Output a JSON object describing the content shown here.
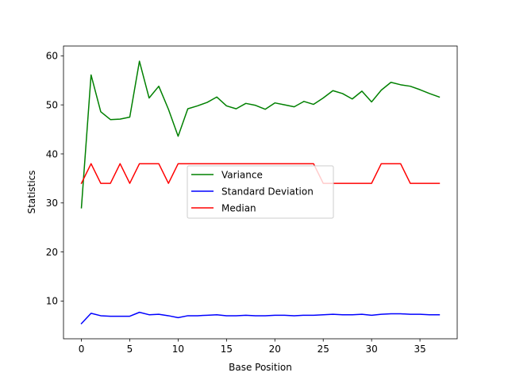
{
  "chart_data": {
    "type": "line",
    "title": "",
    "xlabel": "Base Position",
    "ylabel": "Statistics",
    "xlim": [
      -1.85,
      38.85
    ],
    "ylim": [
      2.3,
      62.0
    ],
    "xticks": [
      0,
      5,
      10,
      15,
      20,
      25,
      30,
      35
    ],
    "yticks": [
      10,
      20,
      30,
      40,
      50,
      60
    ],
    "grid": false,
    "legend_position": "center",
    "x": [
      0,
      1,
      2,
      3,
      4,
      5,
      6,
      7,
      8,
      9,
      10,
      11,
      12,
      13,
      14,
      15,
      16,
      17,
      18,
      19,
      20,
      21,
      22,
      23,
      24,
      25,
      26,
      27,
      28,
      29,
      30,
      31,
      32,
      33,
      34,
      35,
      36,
      37
    ],
    "series": [
      {
        "name": "Variance",
        "color": "#008000",
        "values": [
          29.0,
          56.1,
          48.6,
          47.0,
          47.1,
          47.5,
          58.9,
          51.4,
          53.8,
          49.1,
          43.6,
          49.2,
          49.8,
          50.5,
          51.6,
          49.8,
          49.2,
          50.3,
          49.9,
          49.1,
          50.4,
          50.0,
          49.6,
          50.7,
          50.1,
          51.4,
          52.9,
          52.3,
          51.2,
          52.8,
          50.6,
          53.0,
          54.6,
          54.1,
          53.8,
          53.1,
          52.3,
          51.6
        ]
      },
      {
        "name": "Standard Deviation",
        "color": "#0000ff",
        "values": [
          5.4,
          7.5,
          7.0,
          6.9,
          6.9,
          6.9,
          7.7,
          7.2,
          7.3,
          7.0,
          6.6,
          7.0,
          7.0,
          7.1,
          7.2,
          7.0,
          7.0,
          7.1,
          7.0,
          7.0,
          7.1,
          7.1,
          7.0,
          7.1,
          7.1,
          7.2,
          7.3,
          7.2,
          7.2,
          7.3,
          7.1,
          7.3,
          7.4,
          7.4,
          7.3,
          7.3,
          7.2,
          7.2
        ]
      },
      {
        "name": "Median",
        "color": "#ff0000",
        "values": [
          34,
          38,
          34,
          34,
          38,
          34,
          38,
          38,
          38,
          34,
          38,
          38,
          38,
          38,
          38,
          38,
          38,
          38,
          38,
          38,
          38,
          38,
          38,
          38,
          38,
          34,
          34,
          34,
          34,
          34,
          34,
          38,
          38,
          38,
          34,
          34,
          34,
          34
        ]
      }
    ]
  }
}
